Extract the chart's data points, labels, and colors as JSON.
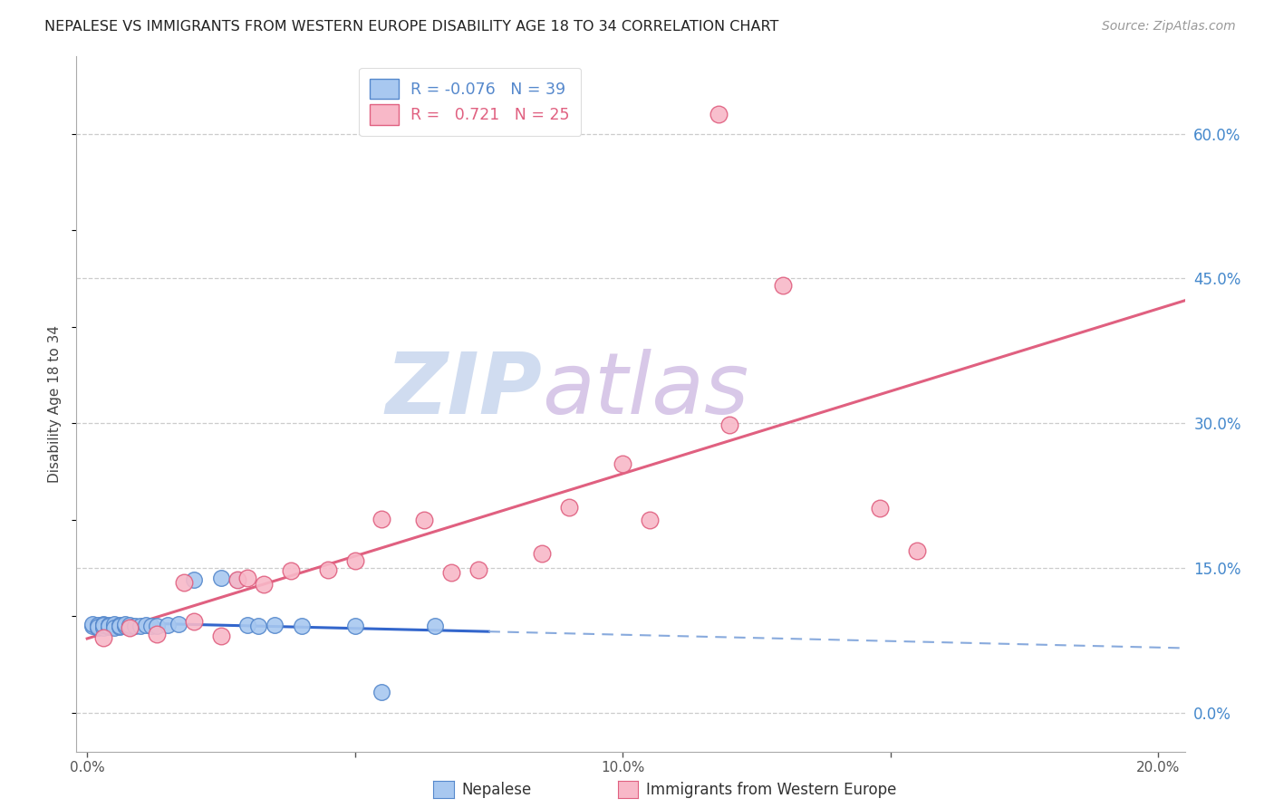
{
  "title": "NEPALESE VS IMMIGRANTS FROM WESTERN EUROPE DISABILITY AGE 18 TO 34 CORRELATION CHART",
  "source": "Source: ZipAtlas.com",
  "ylabel": "Disability Age 18 to 34",
  "nepalese_R": -0.076,
  "nepalese_N": 39,
  "western_europe_R": 0.721,
  "western_europe_N": 25,
  "blue_color": "#A8C8F0",
  "blue_edge_color": "#5588CC",
  "pink_color": "#F8B8C8",
  "pink_edge_color": "#E06080",
  "trend_blue_solid": "#3366CC",
  "trend_blue_dash": "#88AADD",
  "trend_pink": "#E06080",
  "watermark_zip": "ZIP",
  "watermark_atlas": "atlas",
  "watermark_color_zip": "#D0DCF0",
  "watermark_color_atlas": "#D8C8E8",
  "xlim": [
    -0.002,
    0.205
  ],
  "ylim": [
    -0.04,
    0.68
  ],
  "ytick_vals": [
    0.0,
    0.15,
    0.3,
    0.45,
    0.6
  ],
  "ytick_labels": [
    "0.0%",
    "15.0%",
    "30.0%",
    "45.0%",
    "60.0%"
  ],
  "xtick_vals": [
    0.0,
    0.05,
    0.1,
    0.15,
    0.2
  ],
  "xtick_labels": [
    "0.0%",
    "",
    "10.0%",
    "",
    "20.0%"
  ],
  "nepalese_x": [
    0.001,
    0.001,
    0.002,
    0.002,
    0.002,
    0.003,
    0.003,
    0.003,
    0.003,
    0.004,
    0.004,
    0.004,
    0.005,
    0.005,
    0.005,
    0.006,
    0.006,
    0.006,
    0.007,
    0.007,
    0.008,
    0.008,
    0.009,
    0.01,
    0.011,
    0.012,
    0.013,
    0.015,
    0.017,
    0.02,
    0.025,
    0.028,
    0.03,
    0.032,
    0.035,
    0.04,
    0.05,
    0.065,
    0.055
  ],
  "nepalese_y": [
    0.09,
    0.092,
    0.088,
    0.091,
    0.089,
    0.09,
    0.092,
    0.088,
    0.091,
    0.089,
    0.091,
    0.09,
    0.09,
    0.092,
    0.088,
    0.091,
    0.089,
    0.09,
    0.09,
    0.092,
    0.089,
    0.091,
    0.09,
    0.09,
    0.091,
    0.09,
    0.09,
    0.091,
    0.092,
    0.138,
    0.14,
    0.138,
    0.091,
    0.09,
    0.091,
    0.09,
    0.09,
    0.09,
    0.022
  ],
  "western_x": [
    0.003,
    0.008,
    0.013,
    0.018,
    0.02,
    0.025,
    0.028,
    0.03,
    0.033,
    0.038,
    0.045,
    0.05,
    0.055,
    0.063,
    0.068,
    0.073,
    0.085,
    0.09,
    0.1,
    0.105,
    0.12,
    0.13,
    0.148,
    0.155,
    0.118
  ],
  "western_y": [
    0.078,
    0.088,
    0.082,
    0.135,
    0.095,
    0.08,
    0.138,
    0.14,
    0.133,
    0.147,
    0.148,
    0.158,
    0.201,
    0.2,
    0.145,
    0.148,
    0.165,
    0.213,
    0.258,
    0.2,
    0.298,
    0.443,
    0.212,
    0.168,
    0.62
  ],
  "blue_trend_solid_end": 0.075,
  "blue_trend_dash_start": 0.075
}
